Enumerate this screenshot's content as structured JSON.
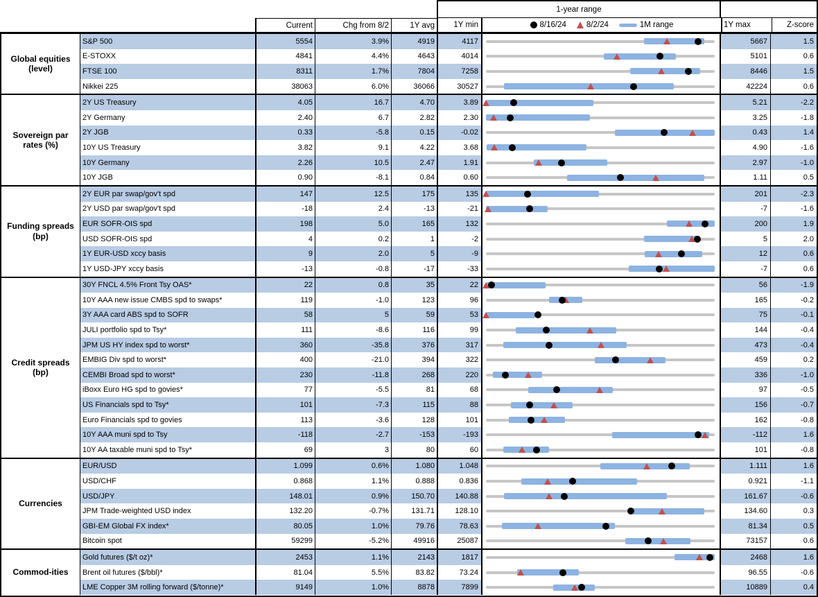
{
  "header": {
    "range_title": "1-year range",
    "current": "Current",
    "chg": "Chg from 8/2",
    "avg": "1Y avg",
    "min": "1Y min",
    "max": "1Y max",
    "z": "Z-score"
  },
  "colors": {
    "row_blue": "#b8cce4",
    "bar_blue": "#8db3e2",
    "marker_red": "#c0504d",
    "marker_black": "#000000",
    "track_gray": "#c6c6c6",
    "border_black": "#000000"
  },
  "chart_data": {
    "type": "table",
    "title": "1-year range",
    "legend": [
      {
        "marker": "dot",
        "label": "8/16/24"
      },
      {
        "marker": "triangle",
        "label": "8/2/24"
      },
      {
        "marker": "bar",
        "label": "1M range"
      }
    ],
    "columns": [
      "Current",
      "Chg from 8/2",
      "1Y avg",
      "1Y min",
      "1Y max",
      "Z-score"
    ],
    "range_note": "bar=1M range, dot=8/16/24 level, triangle=8/2/24 level, positions are fractions of 1Y min-max span",
    "sections": [
      {
        "group": "Global equities (level)",
        "rows": [
          {
            "label": "S&P 500",
            "current": "5554",
            "chg": "3.9%",
            "avg": "4919",
            "min": "4117",
            "max": "5667",
            "z": "1.5",
            "bar": [
              0.69,
              0.955
            ],
            "dot": 0.927,
            "tri": 0.793
          },
          {
            "label": "E-STOXX",
            "current": "4841",
            "chg": "4.4%",
            "avg": "4643",
            "min": "4014",
            "max": "5101",
            "z": "0.6",
            "bar": [
              0.515,
              0.83
            ],
            "dot": 0.761,
            "tri": 0.573
          },
          {
            "label": "FTSE 100",
            "current": "8311",
            "chg": "1.7%",
            "avg": "7804",
            "min": "7258",
            "max": "8446",
            "z": "1.5",
            "bar": [
              0.63,
              0.935
            ],
            "dot": 0.886,
            "tri": 0.769
          },
          {
            "label": "Nikkei 225",
            "current": "38063",
            "chg": "6.0%",
            "avg": "36066",
            "min": "30527",
            "max": "42224",
            "z": "0.6",
            "bar": [
              0.08,
              0.82
            ],
            "dot": 0.644,
            "tri": 0.46
          }
        ]
      },
      {
        "group": "Sovereign par rates (%)",
        "rows": [
          {
            "label": "2Y US Treasury",
            "current": "4.05",
            "chg": "16.7",
            "avg": "4.70",
            "min": "3.89",
            "max": "5.21",
            "z": "-2.2",
            "bar": [
              0.0,
              0.47
            ],
            "dot": 0.121,
            "tri": 0.0
          },
          {
            "label": "2Y Germany",
            "current": "2.40",
            "chg": "6.7",
            "avg": "2.82",
            "min": "2.30",
            "max": "3.25",
            "z": "-1.8",
            "bar": [
              0.0,
              0.455
            ],
            "dot": 0.105,
            "tri": 0.035
          },
          {
            "label": "2Y JGB",
            "current": "0.33",
            "chg": "-5.8",
            "avg": "0.15",
            "min": "-0.02",
            "max": "0.43",
            "z": "1.4",
            "bar": [
              0.565,
              1.0
            ],
            "dot": 0.778,
            "tri": 0.905
          },
          {
            "label": "10Y US Treasury",
            "current": "3.82",
            "chg": "9.1",
            "avg": "4.22",
            "min": "3.68",
            "max": "4.90",
            "z": "-1.6",
            "bar": [
              0.003,
              0.44
            ],
            "dot": 0.115,
            "tri": 0.038
          },
          {
            "label": "10Y Germany",
            "current": "2.26",
            "chg": "10.5",
            "avg": "2.47",
            "min": "1.91",
            "max": "2.97",
            "z": "-1.0",
            "bar": [
              0.21,
              0.53
            ],
            "dot": 0.33,
            "tri": 0.231
          },
          {
            "label": "10Y JGB",
            "current": "0.90",
            "chg": "-8.1",
            "avg": "0.84",
            "min": "0.60",
            "max": "1.11",
            "z": "0.5",
            "bar": [
              0.355,
              0.955
            ],
            "dot": 0.588,
            "tri": 0.745
          }
        ]
      },
      {
        "group": "Funding spreads (bp)",
        "rows": [
          {
            "label": "2Y EUR par swap/gov't spd",
            "current": "147",
            "chg": "12.5",
            "avg": "175",
            "min": "135",
            "max": "201",
            "z": "-2.3",
            "bar": [
              0.0,
              0.495
            ],
            "dot": 0.182,
            "tri": 0.0
          },
          {
            "label": "2Y USD par swap/gov't spd",
            "current": "-18",
            "chg": "2.4",
            "avg": "-13",
            "min": "-21",
            "max": "-7",
            "z": "-1.6",
            "bar": [
              0.0,
              0.27
            ],
            "dot": 0.19,
            "tri": 0.01
          },
          {
            "label": "EUR SOFR-OIS spd",
            "current": "198",
            "chg": "5.0",
            "avg": "165",
            "min": "132",
            "max": "200",
            "z": "1.9",
            "bar": [
              0.79,
              1.0
            ],
            "dot": 0.958,
            "tri": 0.89
          },
          {
            "label": "USD SOFR-OIS spd",
            "current": "4",
            "chg": "0.2",
            "avg": "1",
            "min": "-2",
            "max": "5",
            "z": "2.0",
            "bar": [
              0.69,
              0.93
            ],
            "dot": 0.925,
            "tri": 0.9
          },
          {
            "label": "1Y EUR-USD xccy basis",
            "current": "9",
            "chg": "2.0",
            "avg": "5",
            "min": "-9",
            "max": "12",
            "z": "0.6",
            "bar": [
              0.695,
              0.945
            ],
            "dot": 0.855,
            "tri": 0.755
          },
          {
            "label": "1Y USD-JPY xccy basis",
            "current": "-13",
            "chg": "-0.8",
            "avg": "-17",
            "min": "-33",
            "max": "-7",
            "z": "0.6",
            "bar": [
              0.625,
              1.0
            ],
            "dot": 0.757,
            "tri": 0.79
          }
        ]
      },
      {
        "group": "Credit spreads (bp)",
        "rows": [
          {
            "label": "30Y FNCL 4.5% Front Tsy OAS*",
            "current": "22",
            "chg": "0.8",
            "avg": "35",
            "min": "22",
            "max": "56",
            "z": "-1.9",
            "bar": [
              0.0,
              0.26
            ],
            "dot": 0.025,
            "tri": 0.0
          },
          {
            "label": "10Y AAA new issue CMBS spd to swaps*",
            "current": "119",
            "chg": "-1.0",
            "avg": "123",
            "min": "96",
            "max": "165",
            "z": "-0.2",
            "bar": [
              0.275,
              0.42
            ],
            "dot": 0.333,
            "tri": 0.35
          },
          {
            "label": "3Y AAA card ABS spd to SOFR",
            "current": "58",
            "chg": "5",
            "avg": "59",
            "min": "53",
            "max": "75",
            "z": "-0.1",
            "bar": [
              0.0,
              0.215
            ],
            "dot": 0.227,
            "tri": 0.0
          },
          {
            "label": "JULI portfolio spd to Tsy*",
            "current": "111",
            "chg": "-8.6",
            "avg": "116",
            "min": "99",
            "max": "144",
            "z": "-0.4",
            "bar": [
              0.13,
              0.57
            ],
            "dot": 0.265,
            "tri": 0.455
          },
          {
            "label": "JPM US HY index spd to worst*",
            "current": "360",
            "chg": "-35.8",
            "avg": "376",
            "min": "317",
            "max": "473",
            "z": "-0.4",
            "bar": [
              0.075,
              0.615
            ],
            "dot": 0.276,
            "tri": 0.505
          },
          {
            "label": "EMBIG Div spd to worst*",
            "current": "400",
            "chg": "-21.0",
            "avg": "394",
            "min": "322",
            "max": "459",
            "z": "0.2",
            "bar": [
              0.475,
              0.785
            ],
            "dot": 0.567,
            "tri": 0.72
          },
          {
            "label": "CEMBI Broad spd to worst*",
            "current": "230",
            "chg": "-11.8",
            "avg": "268",
            "min": "220",
            "max": "336",
            "z": "-1.0",
            "bar": [
              0.03,
              0.245
            ],
            "dot": 0.086,
            "tri": 0.186
          },
          {
            "label": "iBoxx Euro HG spd to govies*",
            "current": "77",
            "chg": "-5.5",
            "avg": "81",
            "min": "68",
            "max": "97",
            "z": "-0.5",
            "bar": [
              0.185,
              0.555
            ],
            "dot": 0.31,
            "tri": 0.497
          },
          {
            "label": "US Financials spd to Tsy*",
            "current": "101",
            "chg": "-7.3",
            "avg": "115",
            "min": "88",
            "max": "156",
            "z": "-0.7",
            "bar": [
              0.11,
              0.38
            ],
            "dot": 0.19,
            "tri": 0.297
          },
          {
            "label": "Euro Financials spd to govies",
            "current": "113",
            "chg": "-3.6",
            "avg": "128",
            "min": "101",
            "max": "162",
            "z": "-0.8",
            "bar": [
              0.1,
              0.345
            ],
            "dot": 0.198,
            "tri": 0.257
          },
          {
            "label": "10Y AAA muni spd to Tsy",
            "current": "-118",
            "chg": "-2.7",
            "avg": "-153",
            "min": "-193",
            "max": "-112",
            "z": "1.6",
            "bar": [
              0.55,
              0.975
            ],
            "dot": 0.926,
            "tri": 0.958
          },
          {
            "label": "10Y AA taxable muni spd to Tsy*",
            "current": "69",
            "chg": "3",
            "avg": "80",
            "min": "60",
            "max": "101",
            "z": "-0.8",
            "bar": [
              0.075,
              0.275
            ],
            "dot": 0.222,
            "tri": 0.16
          }
        ]
      },
      {
        "group": "Currencies",
        "rows": [
          {
            "label": "EUR/USD",
            "current": "1.099",
            "chg": "0.6%",
            "avg": "1.080",
            "min": "1.048",
            "max": "1.111",
            "z": "1.6",
            "bar": [
              0.5,
              0.89
            ],
            "dot": 0.813,
            "tri": 0.706
          },
          {
            "label": "USD/CHF",
            "current": "0.868",
            "chg": "1.1%",
            "avg": "0.888",
            "min": "0.836",
            "max": "0.921",
            "z": "-1.1",
            "bar": [
              0.155,
              0.66
            ],
            "dot": 0.378,
            "tri": 0.27
          },
          {
            "label": "USD/JPY",
            "current": "148.01",
            "chg": "0.9%",
            "avg": "150.70",
            "min": "140.88",
            "max": "161.67",
            "z": "-0.6",
            "bar": [
              0.08,
              0.79
            ],
            "dot": 0.343,
            "tri": 0.278
          },
          {
            "label": "JPM Trade-weighted USD index",
            "current": "132.20",
            "chg": "-0.7%",
            "avg": "131.71",
            "min": "128.10",
            "max": "134.60",
            "z": "0.3",
            "bar": [
              0.64,
              0.955
            ],
            "dot": 0.632,
            "tri": 0.77
          },
          {
            "label": "GBI-EM Global FX index*",
            "current": "80.05",
            "chg": "1.0%",
            "avg": "79.76",
            "min": "78.63",
            "max": "81.34",
            "z": "0.5",
            "bar": [
              0.07,
              0.565
            ],
            "dot": 0.524,
            "tri": 0.23
          },
          {
            "label": "Bitcoin spot",
            "current": "59299",
            "chg": "-5.2%",
            "avg": "49916",
            "min": "25087",
            "max": "73157",
            "z": "0.6",
            "bar": [
              0.61,
              0.895
            ],
            "dot": 0.71,
            "tri": 0.778
          }
        ]
      },
      {
        "group": "Commod-ities",
        "rows": [
          {
            "label": "Gold futures ($/t oz)*",
            "current": "2453",
            "chg": "1.1%",
            "avg": "2143",
            "min": "1817",
            "max": "2468",
            "z": "1.6",
            "bar": [
              0.825,
              1.0
            ],
            "dot": 0.978,
            "tri": 0.936
          },
          {
            "label": "Brent oil futures ($/bbl)*",
            "current": "81.04",
            "chg": "5.5%",
            "avg": "83.82",
            "min": "73.24",
            "max": "96.55",
            "z": "-0.6",
            "bar": [
              0.135,
              0.405
            ],
            "dot": 0.335,
            "tri": 0.153
          },
          {
            "label": "LME Copper 3M rolling forward ($/tonne)*",
            "current": "9149",
            "chg": "1.0%",
            "avg": "8878",
            "min": "7899",
            "max": "10889",
            "z": "0.4",
            "bar": [
              0.295,
              0.475
            ],
            "dot": 0.417,
            "tri": 0.388
          }
        ]
      }
    ]
  }
}
